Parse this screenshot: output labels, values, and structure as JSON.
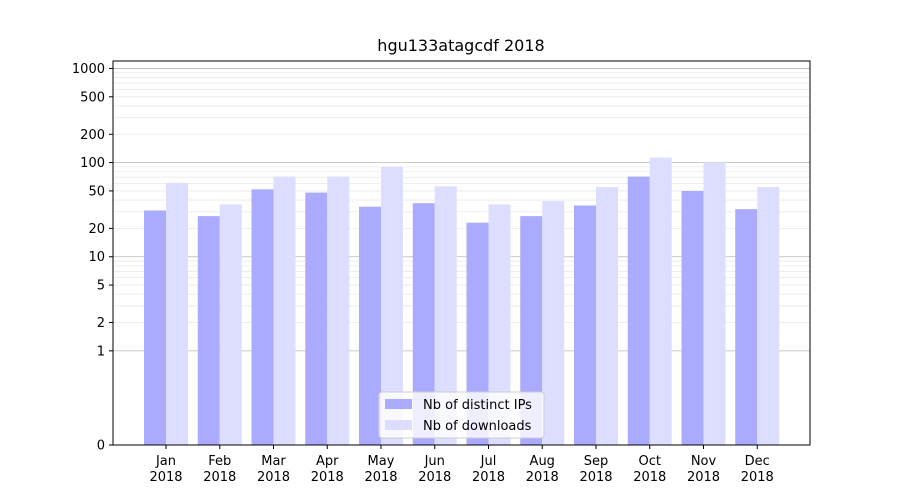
{
  "chart_data": {
    "type": "bar",
    "title": "hgu133atagcdf 2018",
    "xlabel": "",
    "ylabel": "",
    "yscale": "symlog",
    "ylim": [
      0,
      1200
    ],
    "grid": true,
    "legend_position": "bottom-center",
    "categories": [
      "Jan\n2018",
      "Feb\n2018",
      "Mar\n2018",
      "Apr\n2018",
      "May\n2018",
      "Jun\n2018",
      "Jul\n2018",
      "Aug\n2018",
      "Sep\n2018",
      "Oct\n2018",
      "Nov\n2018",
      "Dec\n2018"
    ],
    "series": [
      {
        "name": "Nb of distinct IPs",
        "color": "#aaaaff",
        "values": [
          31,
          27,
          52,
          48,
          34,
          37,
          23,
          27,
          35,
          71,
          50,
          32
        ]
      },
      {
        "name": "Nb of downloads",
        "color": "#ddddff",
        "values": [
          61,
          36,
          71,
          71,
          90,
          56,
          36,
          39,
          55,
          113,
          100,
          55
        ]
      }
    ],
    "y_ticks": [
      "0",
      "1",
      "2",
      "5",
      "10",
      "20",
      "50",
      "100",
      "200",
      "500",
      "1000"
    ]
  }
}
